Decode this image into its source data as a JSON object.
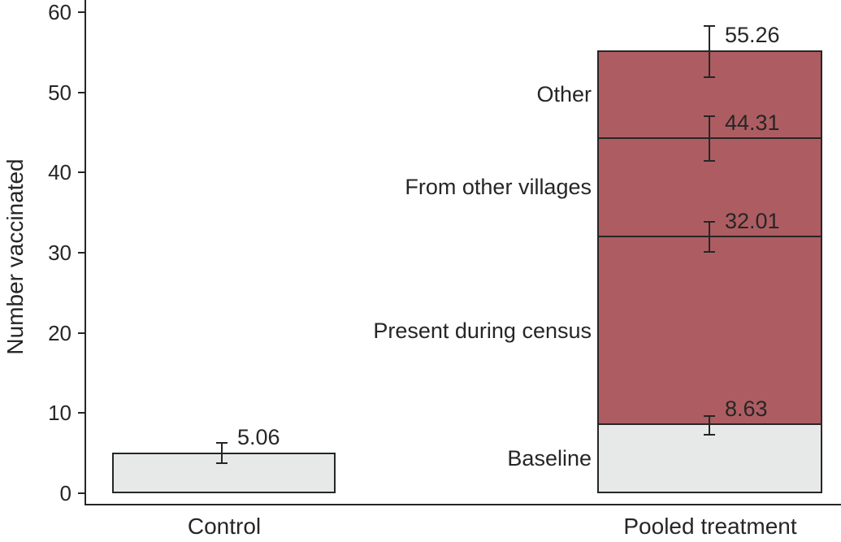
{
  "chart_data": {
    "type": "bar",
    "subtype": "stacked-bar-with-error-bars",
    "title": "",
    "xlabel": "",
    "ylabel": "Number vaccinated",
    "ylim": [
      0,
      60
    ],
    "yticks": [
      0,
      10,
      20,
      30,
      40,
      50,
      60
    ],
    "grid": false,
    "legend": "none",
    "categories": [
      "Control",
      "Pooled treatment"
    ],
    "colors": {
      "treatment_fill": "#ad5d62",
      "control_fill": "#e7e8e8",
      "stroke": "#262626",
      "background": "#ffffff"
    },
    "control": {
      "label": "Control",
      "total": 5.06,
      "total_label": "5.06",
      "error_low": 3.8,
      "error_high": 6.3,
      "color": "#e7e8e8"
    },
    "pooled": {
      "label": "Pooled treatment",
      "segments": [
        {
          "name": "Baseline",
          "cumulative": 8.63,
          "cumulative_label": "8.63",
          "error_low": 7.3,
          "error_high": 9.6,
          "color": "#e7e8e8"
        },
        {
          "name": "Present during census",
          "cumulative": 32.01,
          "cumulative_label": "32.01",
          "error_low": 30.1,
          "error_high": 33.9,
          "color": "#ad5d62"
        },
        {
          "name": "From other villages",
          "cumulative": 44.31,
          "cumulative_label": "44.31",
          "error_low": 41.5,
          "error_high": 47.0,
          "color": "#ad5d62"
        },
        {
          "name": "Other",
          "cumulative": 55.26,
          "cumulative_label": "55.26",
          "error_low": 51.9,
          "error_high": 58.3,
          "color": "#ad5d62"
        }
      ]
    }
  }
}
